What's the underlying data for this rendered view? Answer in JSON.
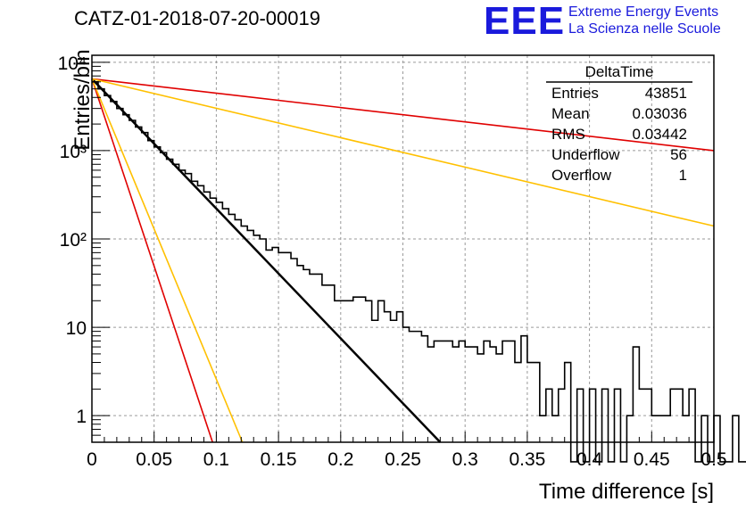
{
  "page_title": "CATZ-01-2018-07-20-00019",
  "logo": {
    "mark": "EEE",
    "line1": "Extreme Energy Events",
    "line2": "La Scienza nelle Scuole",
    "color": "#1a1adc"
  },
  "stats_box": {
    "title": "DeltaTime",
    "rows": [
      {
        "label": "Entries",
        "value": "43851"
      },
      {
        "label": "Mean",
        "value": "0.03036"
      },
      {
        "label": "RMS",
        "value": "0.03442"
      },
      {
        "label": "Underflow",
        "value": "56"
      },
      {
        "label": "Overflow",
        "value": "1"
      }
    ]
  },
  "chart_data": {
    "type": "line",
    "title": "CATZ-01-2018-07-20-00019",
    "xlabel": "Time difference [s]",
    "ylabel": "Entries/bin",
    "xlim": [
      0,
      0.5
    ],
    "ylim": [
      0.5,
      12000
    ],
    "yscale": "log",
    "grid": true,
    "x_ticks": [
      "0",
      "0.05",
      "0.1",
      "0.15",
      "0.2",
      "0.25",
      "0.3",
      "0.35",
      "0.4",
      "0.45",
      "0.5"
    ],
    "y_ticks": [
      {
        "value": 1,
        "label": "1"
      },
      {
        "value": 10,
        "label": "10"
      },
      {
        "value": 100,
        "label": "10²"
      },
      {
        "value": 1000,
        "label": "10³"
      },
      {
        "value": 10000,
        "label": "10⁴"
      }
    ],
    "histogram": {
      "color": "#000000",
      "bin_width": 0.005,
      "values": [
        6000,
        5000,
        4200,
        3600,
        3000,
        2550,
        2200,
        1850,
        1600,
        1300,
        1100,
        950,
        800,
        700,
        600,
        550,
        450,
        400,
        340,
        290,
        260,
        220,
        190,
        165,
        140,
        125,
        110,
        100,
        75,
        80,
        70,
        70,
        60,
        50,
        45,
        40,
        40,
        30,
        30,
        20,
        20,
        20,
        22,
        22,
        20,
        12,
        20,
        15,
        12,
        15,
        10,
        9,
        9,
        8,
        6,
        7,
        7,
        7,
        6,
        7,
        6,
        6,
        5,
        7,
        6,
        5,
        7,
        7,
        4,
        8,
        4,
        4,
        1,
        2,
        1,
        2,
        4,
        0.3,
        2,
        0.3,
        2,
        0.3,
        2,
        0.3,
        2,
        0.3,
        1,
        6,
        2,
        2,
        1,
        1,
        1,
        2,
        2,
        1,
        2,
        0.3,
        1,
        0.3,
        1,
        0.3,
        0.3,
        1,
        0.3,
        0.3,
        0.3,
        1,
        0.3,
        1,
        1,
        0.3,
        0.3,
        0.3,
        0.3,
        0.3,
        0.3,
        0.3,
        0.3,
        0.3,
        0.3,
        0.3,
        0.3,
        0.3,
        0.3,
        0.3,
        0.3,
        0.3,
        0.3,
        0.3
      ]
    },
    "fits": [
      {
        "color": "#000000",
        "x0": 0,
        "y0": 6500,
        "x1": 0.28,
        "y1": 0.5,
        "width": 2.5
      },
      {
        "color": "#e00000",
        "x0": 0,
        "y0": 6500,
        "x1": 0.5,
        "y1": 1000,
        "width": 1.6
      },
      {
        "color": "#ffc000",
        "x0": 0,
        "y0": 6500,
        "x1": 0.5,
        "y1": 140,
        "width": 1.6
      },
      {
        "color": "#e00000",
        "x0": 0,
        "y0": 6500,
        "x1": 0.097,
        "y1": 0.5,
        "width": 1.6
      },
      {
        "color": "#ffc000",
        "x0": 0,
        "y0": 6500,
        "x1": 0.121,
        "y1": 0.5,
        "width": 1.6
      }
    ]
  }
}
